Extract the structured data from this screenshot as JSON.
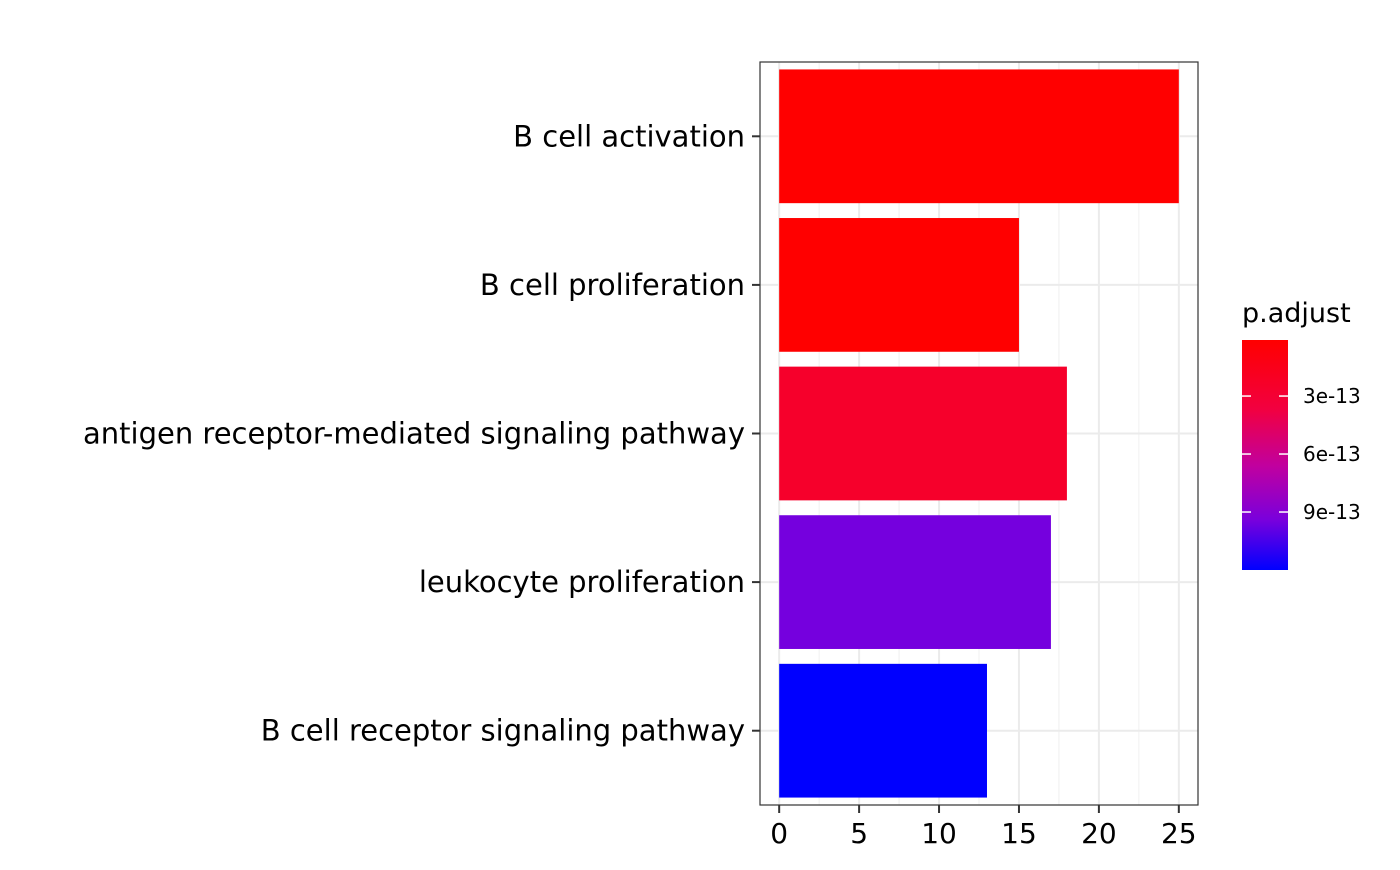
{
  "chart_data": {
    "type": "bar",
    "orientation": "horizontal",
    "categories": [
      "B cell activation",
      "B cell proliferation",
      "antigen receptor-mediated signaling pathway",
      "leukocyte proliferation",
      "B cell receptor signaling pathway"
    ],
    "values": [
      25,
      15,
      18,
      17,
      13
    ],
    "p_adjust": [
      1e-14,
      1e-14,
      2.5e-13,
      9.5e-13,
      1.2e-12
    ],
    "xlim": [
      -1.2,
      26.2
    ],
    "xticks": [
      "0",
      "5",
      "10",
      "15",
      "20",
      "25"
    ],
    "xtick_values": [
      0,
      5,
      10,
      15,
      20,
      25
    ],
    "title": "",
    "xlabel": "",
    "ylabel": "",
    "grid": true,
    "legend": {
      "title": "p.adjust",
      "position": "right",
      "labels": [
        "3e-13",
        "6e-13",
        "9e-13"
      ],
      "label_values": [
        3e-13,
        6e-13,
        9e-13
      ],
      "range": [
        1e-14,
        1.2e-12
      ],
      "color_low_p": "#ff0000",
      "color_high_p": "#0000ff"
    }
  }
}
